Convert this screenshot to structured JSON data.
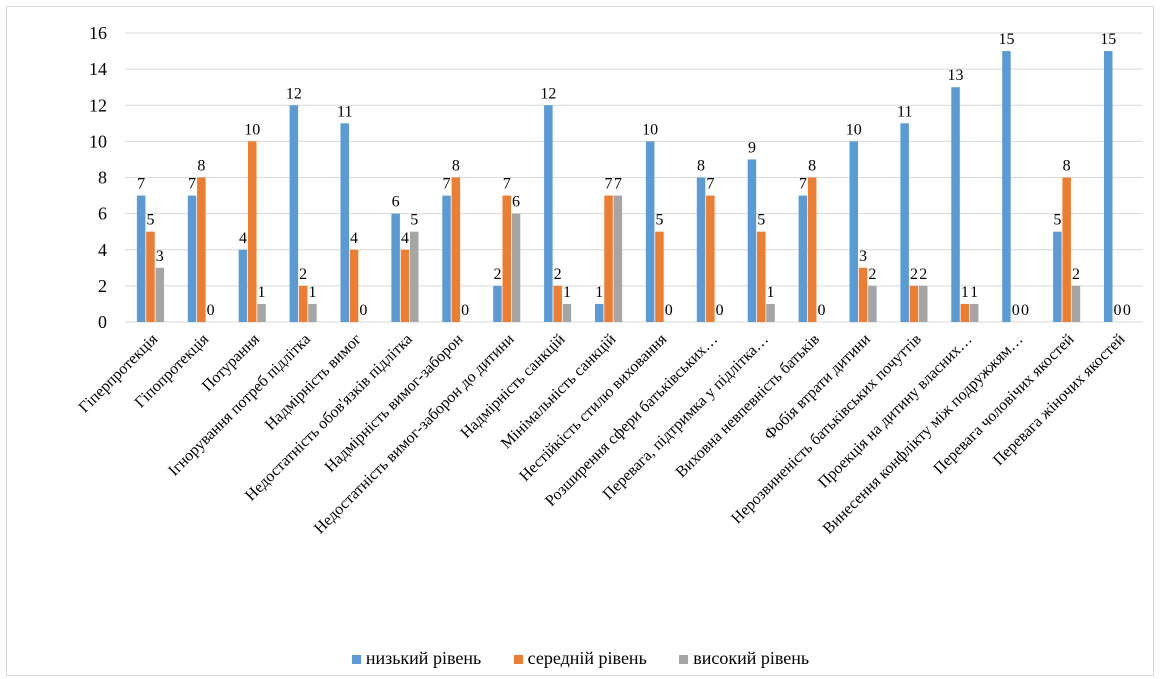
{
  "chart_data": {
    "type": "bar",
    "title": "",
    "xlabel": "",
    "ylabel": "",
    "ylim": [
      0,
      16
    ],
    "yticks": [
      0,
      2,
      4,
      6,
      8,
      10,
      12,
      14,
      16
    ],
    "grid": true,
    "legend_position": "bottom",
    "categories": [
      "Гіперпротекція",
      "Гіпопротекція",
      "Потурання",
      "Ігнорування потреб підлітка",
      "Надмірність вимог",
      "Недостатність обов'язків підлітка",
      "Надмірність вимог-заборон",
      "Недостатність вимог-заборон до дитини",
      "Надмірність санкцій",
      "Мінімальність санкцій",
      "Нестійкість стилю виховання",
      "Розширення сфери батьківських…",
      "Перевага, підтримка у підлітка…",
      "Виховна невпевність батьків",
      "Фобія втрати дитини",
      "Нерозвиненість батьківських почуттів",
      "Проекція на дитину власних…",
      "Винесення конфлікту між подружжям…",
      "Перевага чоловічих якостей",
      "Перевага жіночих якостей"
    ],
    "series": [
      {
        "name": "низький рівень",
        "color": "#5b9bd5",
        "values": [
          7,
          7,
          4,
          12,
          11,
          6,
          7,
          2,
          12,
          1,
          10,
          8,
          9,
          7,
          10,
          11,
          13,
          15,
          5,
          15
        ]
      },
      {
        "name": "середній рівень",
        "color": "#ed7d31",
        "values": [
          5,
          8,
          10,
          2,
          4,
          4,
          8,
          7,
          2,
          7,
          5,
          7,
          5,
          8,
          3,
          2,
          1,
          0,
          8,
          0
        ]
      },
      {
        "name": "високий рівень",
        "color": "#a5a5a5",
        "values": [
          3,
          0,
          1,
          1,
          0,
          5,
          0,
          6,
          1,
          7,
          0,
          0,
          1,
          0,
          2,
          2,
          1,
          0,
          2,
          0
        ]
      }
    ]
  }
}
